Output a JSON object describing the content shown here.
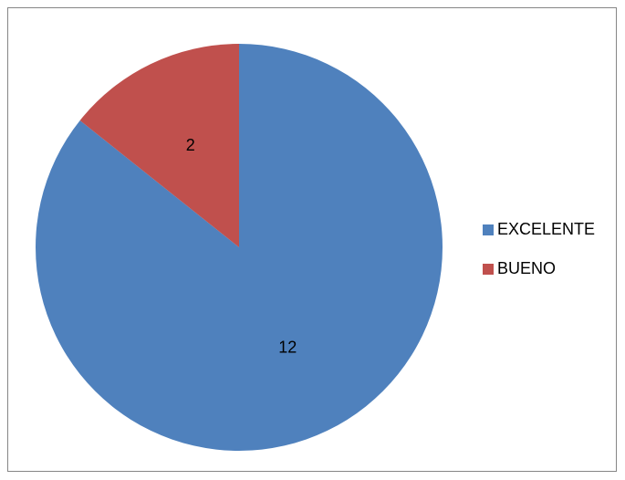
{
  "chart_data": {
    "type": "pie",
    "categories": [
      "EXCELENTE",
      "BUENO"
    ],
    "values": [
      12,
      2
    ],
    "colors": [
      "#4F81BD",
      "#C0504D"
    ],
    "data_labels": [
      "12",
      "2"
    ],
    "legend_position": "right",
    "title": ""
  }
}
